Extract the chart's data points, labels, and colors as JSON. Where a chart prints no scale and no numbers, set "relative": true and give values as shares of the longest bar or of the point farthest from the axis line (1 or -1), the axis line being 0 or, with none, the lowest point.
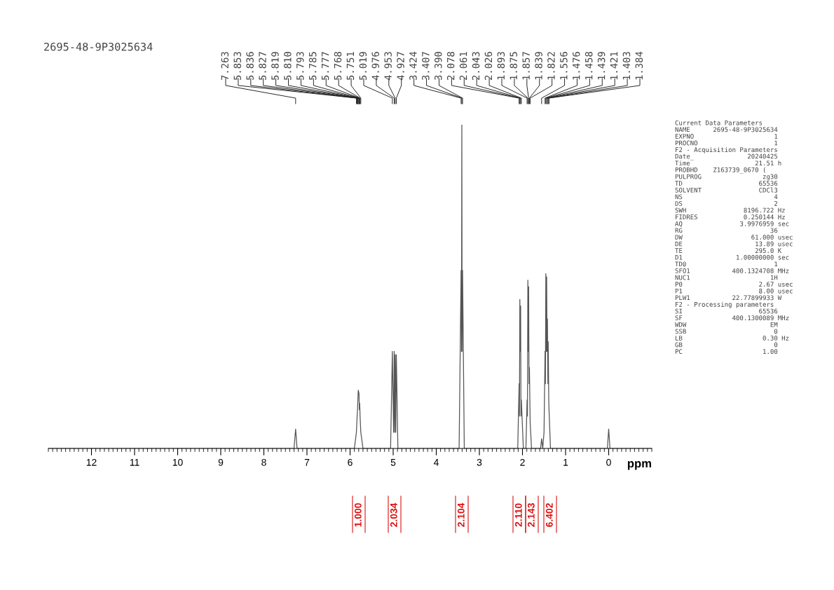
{
  "chart_data": {
    "type": "line",
    "title": "2695-48-9P3025634",
    "xlabel": "ppm",
    "relative": true,
    "xlim": [
      13,
      -1
    ],
    "xticks": [
      12,
      11,
      10,
      9,
      8,
      7,
      6,
      5,
      4,
      3,
      2,
      1,
      0
    ],
    "marker": "none",
    "line_style": "solid",
    "series": [
      {
        "color": "#555555",
        "x": [
          13.0,
          7.3,
          7.263,
          7.23,
          5.9,
          5.853,
          5.836,
          5.827,
          5.819,
          5.81,
          5.793,
          5.785,
          5.777,
          5.768,
          5.751,
          5.7,
          5.06,
          5.019,
          4.99,
          4.976,
          4.965,
          4.953,
          4.94,
          4.927,
          4.89,
          3.47,
          3.424,
          3.415,
          3.407,
          3.4,
          3.39,
          3.35,
          2.11,
          2.078,
          2.07,
          2.061,
          2.05,
          2.043,
          2.035,
          2.026,
          1.98,
          1.92,
          1.893,
          1.885,
          1.875,
          1.865,
          1.857,
          1.848,
          1.839,
          1.822,
          1.79,
          1.58,
          1.556,
          1.53,
          1.5,
          1.476,
          1.468,
          1.458,
          1.45,
          1.439,
          1.43,
          1.421,
          1.41,
          1.403,
          1.39,
          1.384,
          1.35,
          0.03,
          0.0,
          -0.03,
          -1.0
        ],
        "values": [
          0,
          0,
          0.06,
          0,
          0,
          0.05,
          0.1,
          0.12,
          0.15,
          0.18,
          0.17,
          0.12,
          0.14,
          0.1,
          0.05,
          0,
          0,
          0.3,
          0.05,
          0.3,
          0.05,
          0.29,
          0.05,
          0.29,
          0,
          0,
          0.55,
          0.3,
          1.0,
          0.3,
          0.55,
          0,
          0,
          0.2,
          0.1,
          0.46,
          0.3,
          0.44,
          0.1,
          0.15,
          0,
          0,
          0.15,
          0.1,
          0.52,
          0.3,
          0.5,
          0.2,
          0.25,
          0.08,
          0,
          0,
          0.03,
          0,
          0.05,
          0.3,
          0.2,
          0.54,
          0.3,
          0.53,
          0.3,
          0.4,
          0.2,
          0.33,
          0.15,
          0.12,
          0,
          0,
          0.06,
          0,
          0
        ]
      }
    ],
    "annotations": [
      "7.263",
      "5.853",
      "5.836",
      "5.827",
      "5.819",
      "5.810",
      "5.793",
      "5.785",
      "5.777",
      "5.768",
      "5.751",
      "5.019",
      "4.976",
      "4.953",
      "4.927",
      "3.424",
      "3.407",
      "3.390",
      "2.078",
      "2.061",
      "2.043",
      "2.026",
      "1.893",
      "1.875",
      "1.857",
      "1.839",
      "1.822",
      "1.556",
      "1.476",
      "1.458",
      "1.439",
      "1.421",
      "1.403",
      "1.384",
      "1.000",
      "2.034",
      "2.104",
      "2.110",
      "2.143",
      "6.402",
      "Current Data Parameters",
      "NAME      2695-48-9P3025634",
      "EXPNO                     1",
      "PROCNO                    1",
      "F2 - Acquisition Parameters",
      "Date_              20240425",
      "Time                 21.51 h",
      "PROBHD    Z163739_0670 (",
      "PULPROG                zg30",
      "TD                    65536",
      "SOLVENT               CDCl3",
      "NS                        4",
      "DS                        2",
      "SWH               8196.722 Hz",
      "FIDRES            0.250144 Hz",
      "AQ               3.9976959 sec",
      "RG                       36",
      "DW                  61.000 usec",
      "DE                   13.89 usec",
      "TE                   295.0 K",
      "D1              1.00000000 sec",
      "TD0                       1",
      "SFO1           400.1324708 MHz",
      "NUC1                     1H",
      "P0                    2.67 usec",
      "P1                    8.00 usec",
      "PLW1           22.77899933 W",
      "F2 - Processing parameters",
      "SI                    65536",
      "SF             400.1300089 MHz",
      "WDW                      EM",
      "SSB                       0",
      "LB                     0.30 Hz",
      "GB                        0",
      "PC                     1.00"
    ]
  }
}
